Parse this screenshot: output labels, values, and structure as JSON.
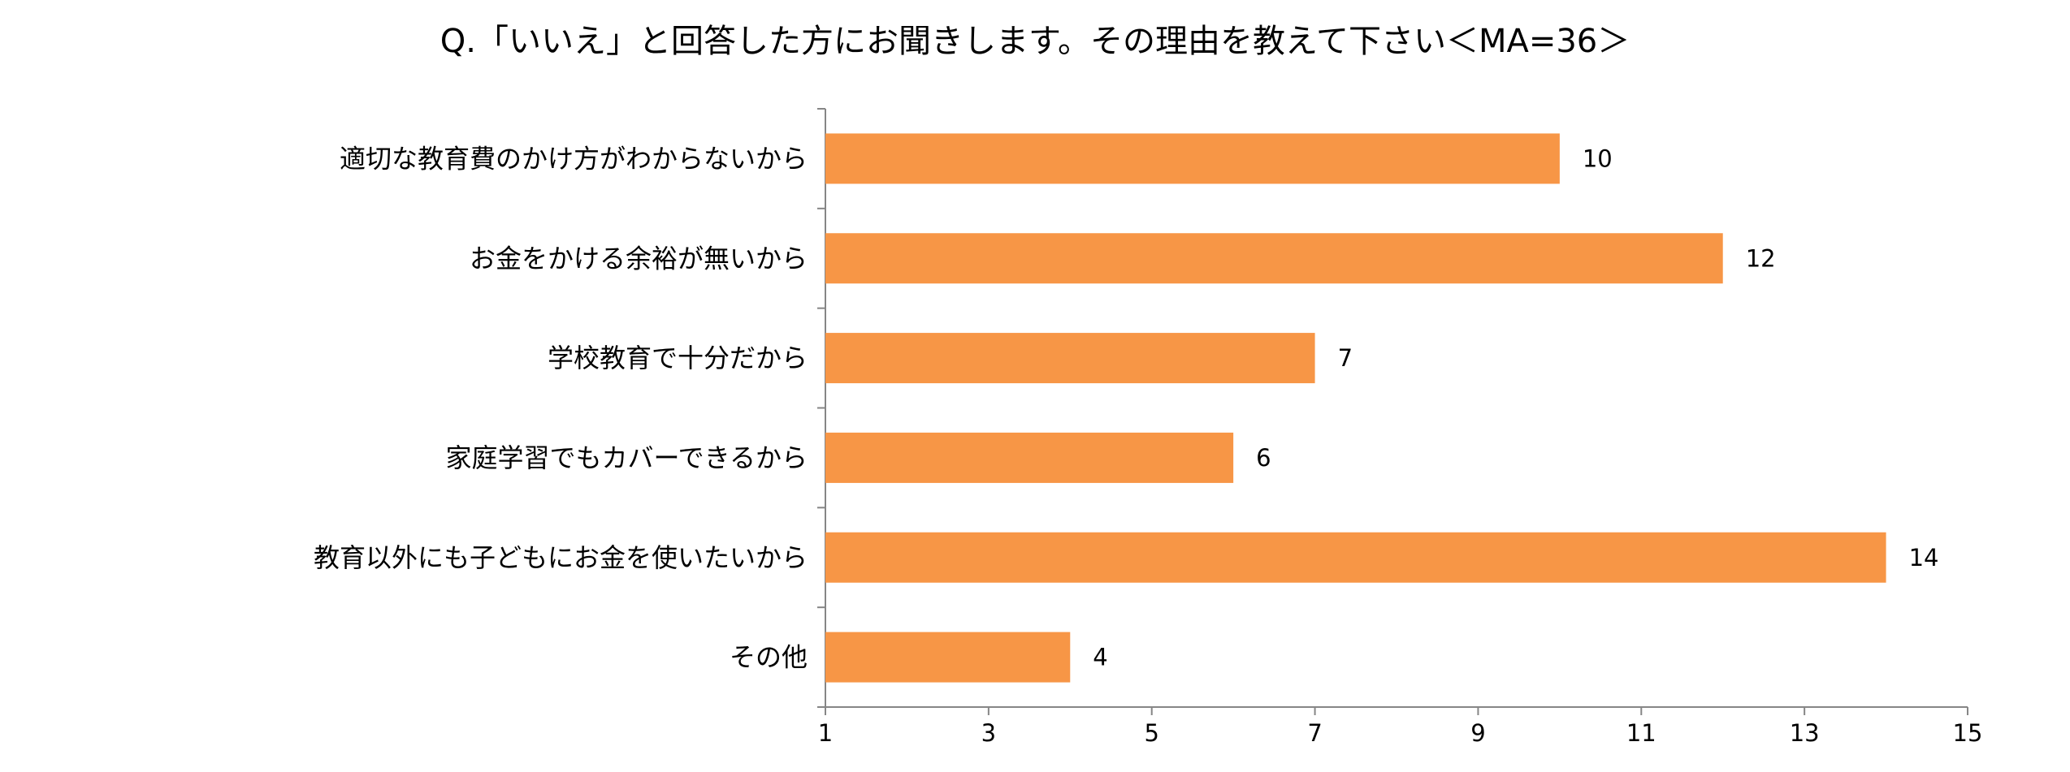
{
  "chart_data": {
    "type": "bar",
    "orientation": "horizontal",
    "title": "Q.「いいえ」と回答した方にお聞きします。その理由を教えて下さい＜MA=36＞",
    "xlabel": "",
    "ylabel": "",
    "categories": [
      "適切な教育費のかけ方がわからないから",
      "お金をかける余裕が無いから",
      "学校教育で十分だから",
      "家庭学習でもカバーできるから",
      "教育以外にも子どもにお金を使いたいから",
      "その他"
    ],
    "values": [
      10,
      12,
      7,
      6,
      14,
      4
    ],
    "xlim": [
      1,
      15
    ],
    "xticks": [
      1,
      3,
      5,
      7,
      9,
      11,
      13,
      15
    ],
    "grid": false,
    "legend": "none",
    "bar_color": "#F79646",
    "axis_color": "#868686"
  }
}
